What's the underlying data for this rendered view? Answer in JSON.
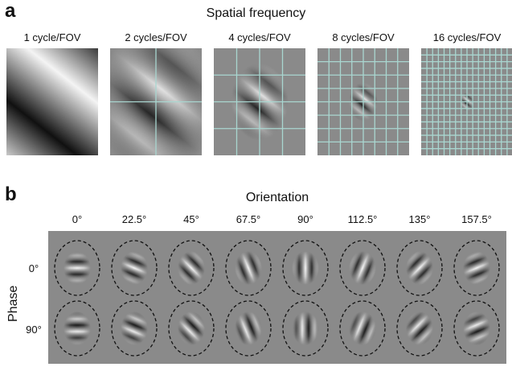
{
  "panel_a": {
    "letter": "a",
    "title": "Spatial frequency",
    "labels": [
      "1 cycle/FOV",
      "2 cycles/FOV",
      "4 cycles/FOV",
      "8 cycles/FOV",
      "16 cycles/FOV"
    ],
    "cycles": [
      1,
      2,
      4,
      8,
      16
    ]
  },
  "panel_b": {
    "letter": "b",
    "title": "Orientation",
    "orientation_labels": [
      "0°",
      "22.5°",
      "45°",
      "67.5°",
      "90°",
      "112.5°",
      "135°",
      "157.5°"
    ],
    "orientations_deg": [
      0,
      22.5,
      45,
      67.5,
      90,
      112.5,
      135,
      157.5
    ],
    "phase_title": "Phase",
    "phase_labels": [
      "0°",
      "90°"
    ],
    "phases_deg": [
      0,
      90
    ]
  },
  "colors": {
    "background_gray": "#8a8a8a",
    "grid_line": "#a9d6d0",
    "dashed_ellipse": "#111111"
  }
}
